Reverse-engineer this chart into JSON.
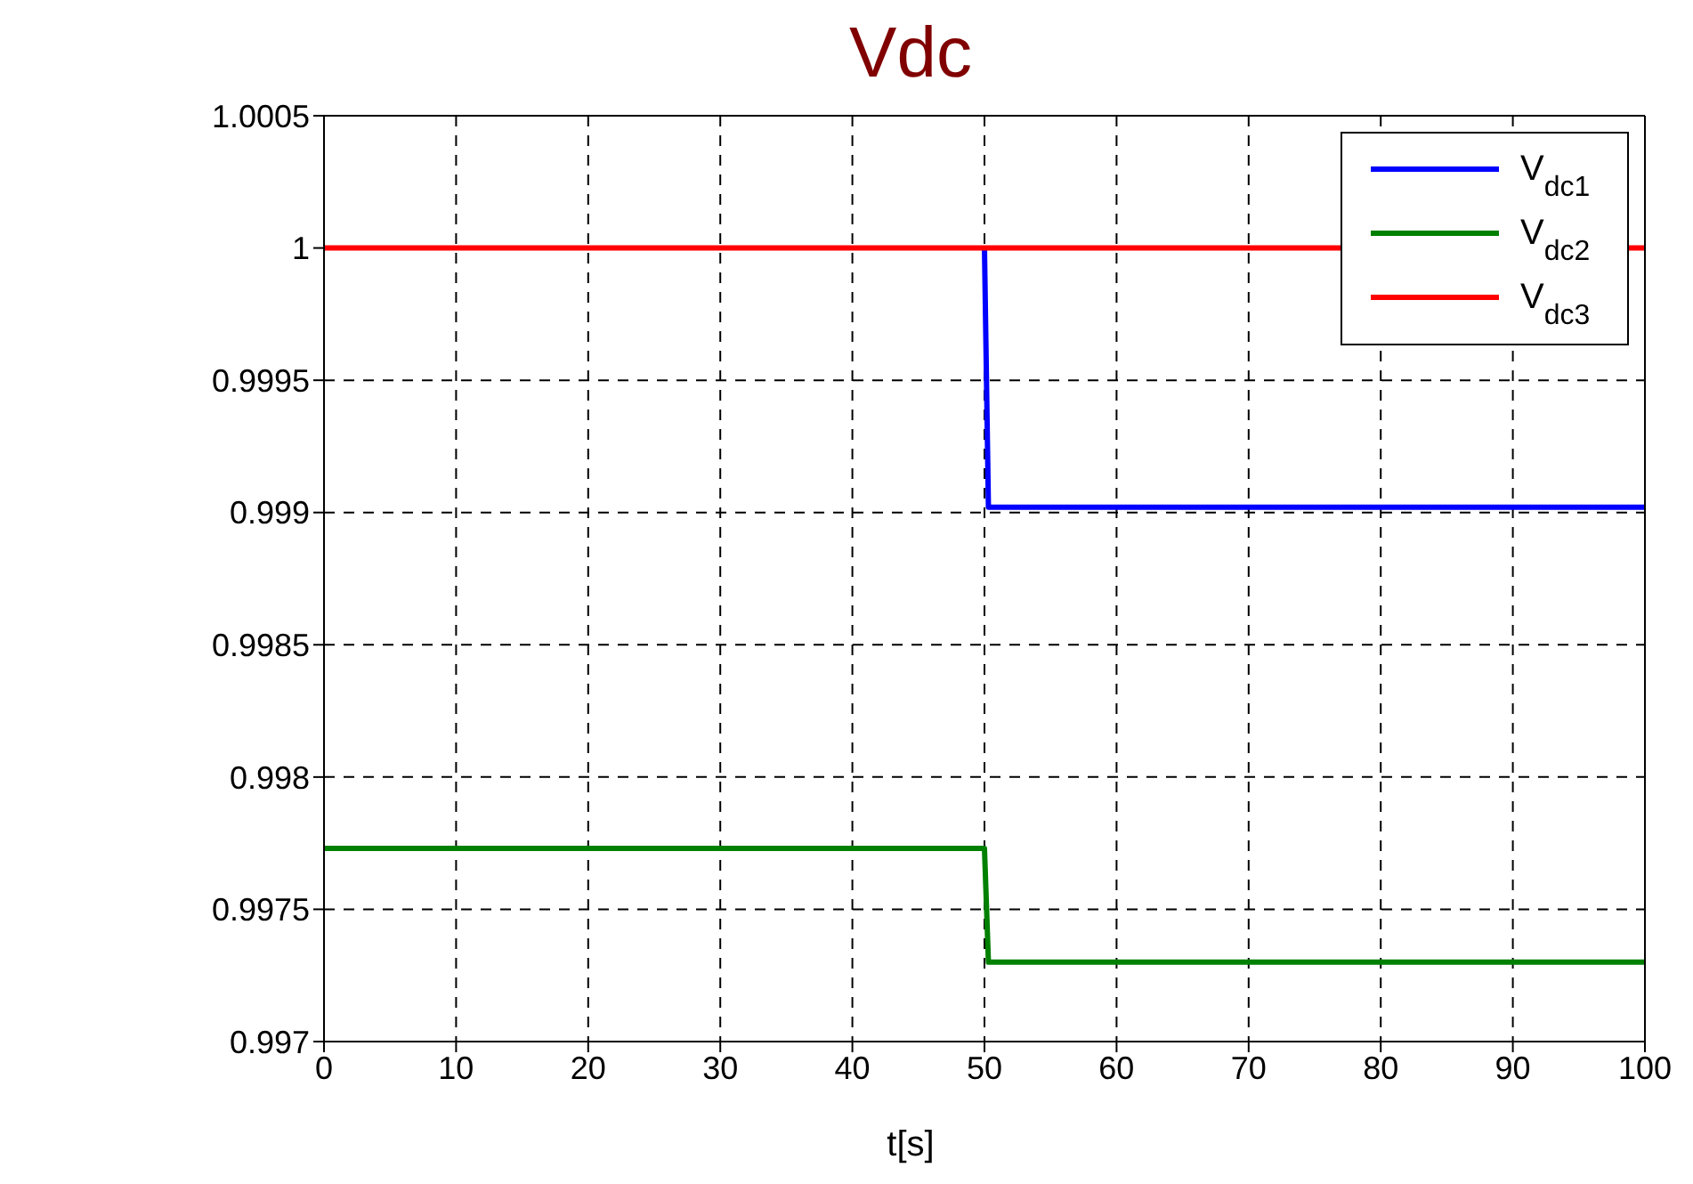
{
  "chart_data": {
    "type": "line",
    "title": "Vdc",
    "xlabel": "t[s]",
    "series": [
      {
        "name": "V$_{dc1}$",
        "color": "#0000ff",
        "x": [
          50,
          50.3,
          100
        ],
        "values": [
          1,
          0.99902,
          0.99902
        ]
      },
      {
        "name": "V$_{dc2}$",
        "color": "#008000",
        "x": [
          0,
          50,
          50.3,
          100
        ],
        "values": [
          0.99773,
          0.99773,
          0.9973,
          0.9973
        ]
      },
      {
        "name": "V$_{dc3}$",
        "color": "#ff0000",
        "x": [
          0,
          100
        ],
        "values": [
          1,
          1
        ]
      }
    ],
    "xlim": [
      0,
      100
    ],
    "xticks": [
      0,
      10,
      20,
      30,
      40,
      50,
      60,
      70,
      80,
      90,
      100
    ],
    "ylim": [
      0.997,
      1.0005
    ],
    "yticks": [
      0.997,
      0.9975,
      0.998,
      0.9985,
      0.999,
      0.9995,
      1,
      1.0005
    ],
    "grid": true,
    "legend": "top right",
    "marker": "none",
    "line_style": "solid"
  }
}
